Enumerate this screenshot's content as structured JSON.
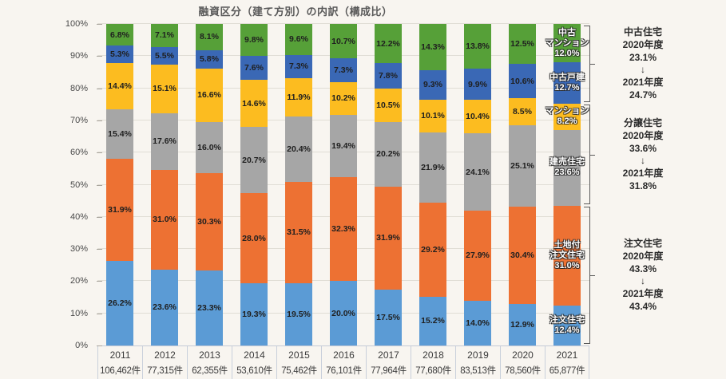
{
  "title": "融資区分（建て方別）の内訳（構成比）",
  "chart_data": {
    "type": "bar",
    "subtype": "stacked-percentage-column",
    "title": "融資区分（建て方別）の内訳（構成比）",
    "categories": [
      "2011",
      "2012",
      "2013",
      "2014",
      "2015",
      "2016",
      "2017",
      "2018",
      "2019",
      "2020",
      "2021"
    ],
    "counts": [
      "106,462件",
      "77,315件",
      "62,355件",
      "53,610件",
      "75,462件",
      "76,101件",
      "77,964件",
      "77,680件",
      "83,513件",
      "78,560件",
      "65,877件"
    ],
    "y_ticks": [
      "0%",
      "10%",
      "20%",
      "30%",
      "40%",
      "50%",
      "60%",
      "70%",
      "80%",
      "90%",
      "100%"
    ],
    "ylim": [
      0,
      100
    ],
    "grid": "horizontal",
    "series": [
      {
        "name": "注文住宅",
        "color": "#5B9BD5",
        "values": [
          26.2,
          23.6,
          23.3,
          19.3,
          19.5,
          20.0,
          17.5,
          15.2,
          14.0,
          12.9,
          12.4
        ]
      },
      {
        "name": "土地付注文住宅",
        "color": "#ED7133",
        "values": [
          31.9,
          31.0,
          30.3,
          28.0,
          31.5,
          32.3,
          31.9,
          29.2,
          27.9,
          30.4,
          31.0
        ]
      },
      {
        "name": "建売住宅",
        "color": "#A6A6A6",
        "values": [
          15.4,
          17.6,
          16.0,
          20.7,
          20.4,
          19.4,
          20.2,
          21.9,
          24.1,
          25.1,
          23.6
        ]
      },
      {
        "name": "マンション",
        "color": "#FCBC20",
        "values": [
          14.4,
          15.1,
          16.6,
          14.6,
          11.9,
          10.2,
          10.5,
          10.1,
          10.4,
          8.5,
          8.2
        ]
      },
      {
        "name": "中古戸建",
        "color": "#3A68B5",
        "values": [
          5.3,
          5.5,
          5.8,
          7.6,
          7.3,
          7.3,
          7.8,
          9.3,
          9.9,
          10.6,
          12.7
        ]
      },
      {
        "name": "中古マンション",
        "color": "#56A038",
        "values": [
          6.8,
          7.1,
          8.1,
          9.8,
          9.6,
          10.7,
          12.2,
          14.3,
          13.8,
          12.5,
          12.0
        ]
      }
    ],
    "final_bar_labels": [
      [
        "注文住宅",
        "12.4%"
      ],
      [
        "土地付",
        "注文住宅",
        "31.0%"
      ],
      [
        "建売住宅",
        "23.6%"
      ],
      [
        "マンション",
        "8.2%"
      ],
      [
        "中古戸建",
        "12.7%"
      ],
      [
        "中古",
        "マンション",
        "12.0%"
      ]
    ]
  },
  "annotations": [
    {
      "lines": [
        "中古住宅",
        "2020年度",
        "23.1%",
        "↓",
        "2021年度",
        "24.7%"
      ]
    },
    {
      "lines": [
        "分譲住宅",
        "2020年度",
        "33.6%",
        "↓",
        "2021年度",
        "31.8%"
      ]
    },
    {
      "lines": [
        "注文住宅",
        "2020年度",
        "43.3%",
        "↓",
        "2021年度",
        "43.4%"
      ]
    }
  ]
}
